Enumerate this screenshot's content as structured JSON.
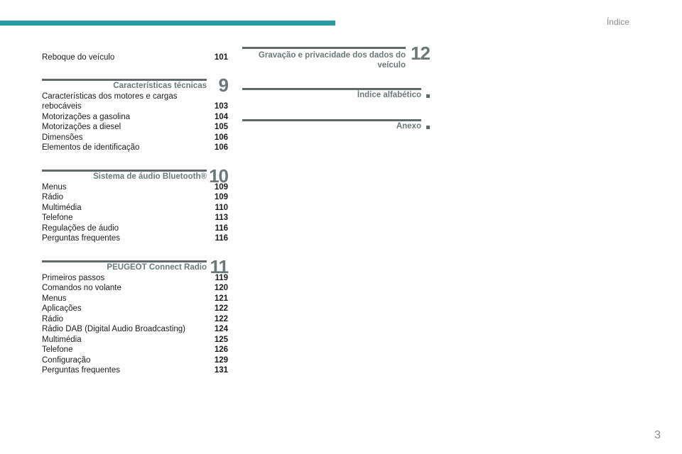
{
  "header": {
    "title": "Índice"
  },
  "page_number": "3",
  "left_column": {
    "intro": [
      {
        "label": "Reboque do veículo",
        "page": "101"
      }
    ],
    "sections": [
      {
        "number": "9",
        "title": "Características técnicas",
        "items": [
          {
            "label": "Características dos motores e cargas rebocáveis",
            "page": "103"
          },
          {
            "label": "Motorizações a gasolina",
            "page": "104"
          },
          {
            "label": "Motorizações a diesel",
            "page": "105"
          },
          {
            "label": "Dimensões",
            "page": "106"
          },
          {
            "label": "Elementos de identificação",
            "page": "106"
          }
        ]
      },
      {
        "number": "10",
        "title": "Sistema de áudio Bluetooth®",
        "items": [
          {
            "label": "Menus",
            "page": "109"
          },
          {
            "label": "Rádio",
            "page": "109"
          },
          {
            "label": "Multimédia",
            "page": "110"
          },
          {
            "label": "Telefone",
            "page": "113"
          },
          {
            "label": "Regulações de áudio",
            "page": "116"
          },
          {
            "label": "Perguntas frequentes",
            "page": "116"
          }
        ]
      },
      {
        "number": "11",
        "title": "PEUGEOT Connect Radio",
        "items": [
          {
            "label": "Primeiros passos",
            "page": "119"
          },
          {
            "label": "Comandos no volante",
            "page": "120"
          },
          {
            "label": "Menus",
            "page": "121"
          },
          {
            "label": "Aplicações",
            "page": "122"
          },
          {
            "label": "Rádio",
            "page": "122"
          },
          {
            "label": "Rádio DAB (Digital Audio Broadcasting)",
            "page": "124"
          },
          {
            "label": "Multimédia",
            "page": "125"
          },
          {
            "label": "Telefone",
            "page": "126"
          },
          {
            "label": "Configuração",
            "page": "129"
          },
          {
            "label": "Perguntas frequentes",
            "page": "131"
          }
        ]
      }
    ]
  },
  "right_column": {
    "sections": [
      {
        "number": "12",
        "title": "Gravação e privacidade dos dados do veículo"
      },
      {
        "title": "Índice alfabético"
      },
      {
        "title": "Anexo"
      }
    ]
  }
}
